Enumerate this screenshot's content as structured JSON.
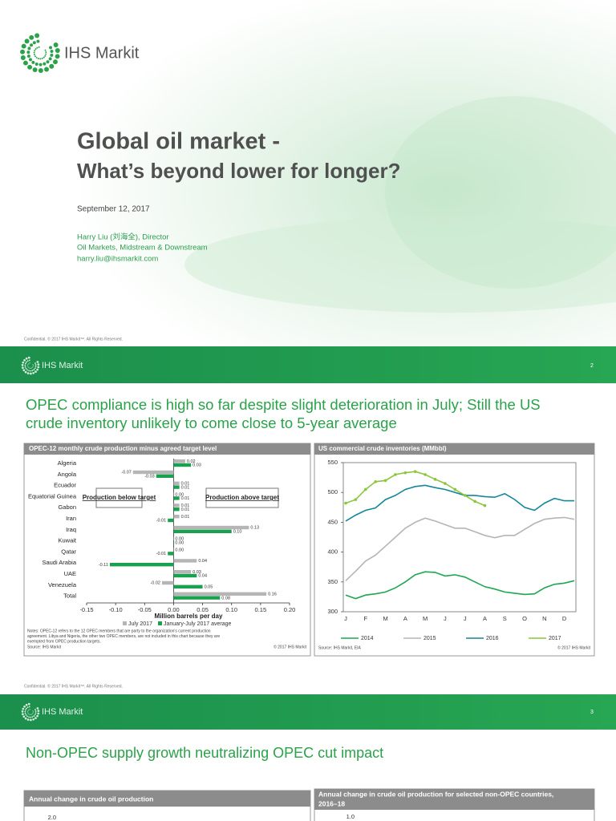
{
  "title_slide": {
    "logo": "IHS Markit",
    "title": "Global oil market -",
    "subtitle": "What’s beyond lower for longer?",
    "date": "September 12, 2017",
    "author": "Harry Liu (刘海全), Director",
    "department": "Oil Markets, Midstream & Downstream",
    "email": "harry.liu@ihsmarkit.com",
    "footer": "Confidential. © 2017 IHS Markit™. All Rights Reserved."
  },
  "slide2": {
    "logo": "IHS Markit",
    "page": "2",
    "heading": [
      "OPEC compliance is high so far despite slight deterioration in July; Still the US",
      "crude inventory unlikely to come close to 5-year average"
    ],
    "footer": "Confidential. © 2017 IHS Markit™. All Rights Reserved."
  },
  "slide3": {
    "logo": "IHS Markit",
    "page": "3",
    "heading": "Non-OPEC supply growth neutralizing OPEC cut impact",
    "chart1_title": "Annual change in crude oil production",
    "chart1_tick": "2.0",
    "chart2_title": [
      "Annual change in crude oil production for selected non-OPEC countries,",
      "2016–18"
    ],
    "chart2_tick": "1.0"
  },
  "chart_data": [
    {
      "type": "bar",
      "orientation": "horizontal",
      "title": "OPEC-12 monthly crude production minus agreed target level",
      "categories": [
        "Algeria",
        "Angola",
        "Ecuador",
        "Equatorial Guinea",
        "Gabon",
        "Iran",
        "Iraq",
        "Kuwait",
        "Qatar",
        "Saudi Arabia",
        "UAE",
        "Venezuela",
        "Total"
      ],
      "series": [
        {
          "name": "July 2017",
          "color": "#b5b5b5",
          "values": [
            0.02,
            -0.07,
            0.01,
            0,
            0.01,
            0.01,
            0.13,
            0,
            0,
            0.04,
            0.03,
            -0.02,
            0.16
          ],
          "value_labels": [
            "0.02",
            "-0.07",
            "0.01",
            "0.00",
            "0.01",
            "0.01",
            "0.13",
            "0.00",
            "0.00",
            "0.04",
            "0.03",
            "-0.02",
            "0.16"
          ]
        },
        {
          "name": "January-July 2017 average",
          "color": "#1aa150",
          "values": [
            0.03,
            -0.03,
            0.01,
            0.01,
            0.01,
            -0.01,
            0.1,
            0,
            -0.01,
            -0.11,
            0.04,
            0.05,
            0.08
          ],
          "value_labels": [
            "0.03",
            "-0.03",
            "0.01",
            "0.01",
            "0.01",
            "-0.01",
            "0.10",
            "0.00",
            "-0.01",
            "-0.11",
            "0.04",
            "0.05",
            "0.08"
          ]
        }
      ],
      "xlim": [
        -0.15,
        0.2
      ],
      "xticks": [
        {
          "value": -0.15,
          "label": "-0.15"
        },
        {
          "value": -0.1,
          "label": "-0.10"
        },
        {
          "value": -0.05,
          "label": "-0.05"
        },
        {
          "value": 0,
          "label": "0.00"
        },
        {
          "value": 0.05,
          "label": "0.05"
        },
        {
          "value": 0.1,
          "label": "0.10"
        },
        {
          "value": 0.15,
          "label": "0.15"
        },
        {
          "value": 0.2,
          "label": "0.20"
        }
      ],
      "x_label": "Million barrels per day",
      "annotations": [
        "Production below target",
        "Production above target"
      ],
      "notes": [
        "Notes: OPEC-12 refers to the 12 OPEC members that are party to the organization's current production",
        "agreement. Libya and Nigeria, the other two OPEC members, are not included in this chart because they are",
        "exempted from OPEC production targets."
      ],
      "source": "Source: IHS Markit",
      "copyright": "© 2017 IHS Markit"
    },
    {
      "type": "line",
      "title": "US commercial crude inventories (MMbbl)",
      "categories": [
        "J",
        null,
        "F",
        null,
        "M",
        null,
        "A",
        null,
        "M",
        null,
        "J",
        null,
        "J",
        null,
        "A",
        null,
        "S",
        null,
        "O",
        null,
        "N",
        null,
        "D",
        null
      ],
      "series": [
        {
          "name": "2014",
          "color": "#1ea650",
          "values": [
            328,
            322,
            328,
            330,
            333,
            340,
            350,
            362,
            367,
            366,
            360,
            362,
            358,
            350,
            342,
            338,
            333,
            331,
            329,
            330,
            340,
            346,
            348,
            352
          ]
        },
        {
          "name": "2015",
          "color": "#b5b5b5",
          "values": [
            352,
            368,
            385,
            395,
            410,
            425,
            440,
            450,
            457,
            452,
            446,
            440,
            440,
            434,
            428,
            424,
            428,
            428,
            438,
            448,
            455,
            457,
            458,
            455
          ]
        },
        {
          "name": "2016",
          "color": "#13889a",
          "values": [
            452,
            462,
            470,
            474,
            488,
            495,
            505,
            510,
            512,
            508,
            505,
            500,
            495,
            495,
            493,
            492,
            498,
            488,
            475,
            470,
            482,
            490,
            486,
            486
          ]
        },
        {
          "name": "2017",
          "color": "#8cc63f",
          "markers": true,
          "values": [
            482,
            488,
            505,
            518,
            520,
            530,
            533,
            535,
            530,
            522,
            515,
            505,
            495,
            485,
            478,
            null,
            null,
            null,
            null,
            null,
            null,
            null,
            null,
            null
          ]
        }
      ],
      "ylim": [
        300,
        550
      ],
      "yticks": [
        300,
        350,
        400,
        450,
        500,
        550
      ],
      "source": "Source: IHS Markit, EIA",
      "copyright": "© 2017 IHS Markit"
    }
  ]
}
